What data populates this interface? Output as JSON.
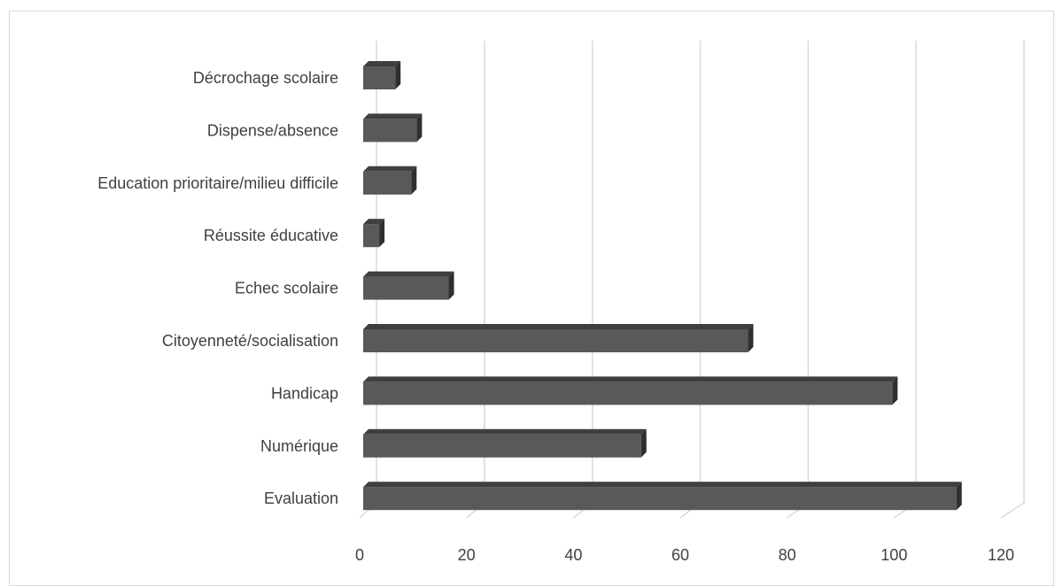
{
  "chart_data": {
    "type": "bar",
    "orientation": "horizontal",
    "style": "3d-clustered",
    "categories": [
      "Décrochage scolaire",
      "Dispense/absence",
      "Education prioritaire/milieu difficile",
      "Réussite éducative",
      "Echec scolaire",
      "Citoyenneté/socialisation",
      "Handicap",
      "Numérique",
      "Evaluation"
    ],
    "values": [
      6,
      10,
      9,
      3,
      16,
      72,
      99,
      52,
      111
    ],
    "title": "",
    "xlabel": "",
    "ylabel": "",
    "xlim": [
      0,
      120
    ],
    "xticks": [
      "0",
      "20",
      "40",
      "60",
      "80",
      "100",
      "120"
    ],
    "grid": "vertical",
    "legend": "none",
    "colors": {
      "bar_front": "#595959",
      "bar_top": "#3f3f3f",
      "bar_side": "#2f2f2f",
      "gridline": "#d9d9d9",
      "text": "#404040"
    }
  }
}
